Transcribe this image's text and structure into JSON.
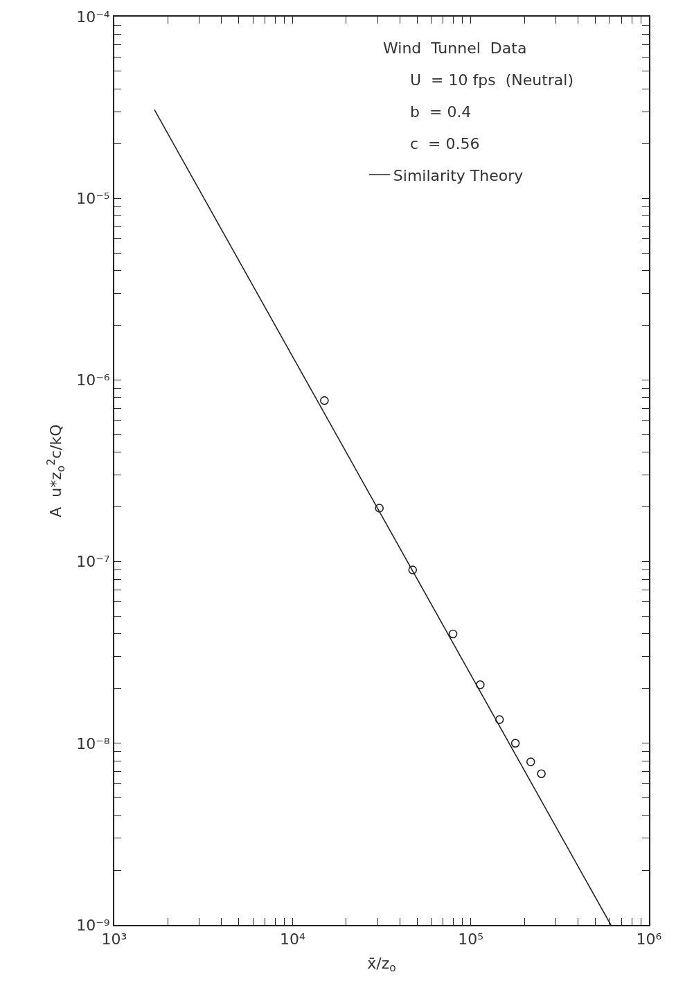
{
  "chart_data": {
    "type": "scatter",
    "xlabel": "x̄/z$_{o}$",
    "ylabel": "A  u*z$_{o}$$^{2}$c/kQ",
    "log": "xy",
    "legend": "top right",
    "annotations": [
      "Wind  Tunnel  Data",
      "U  = 10 fps  (Neutral)",
      "b  = 0.4",
      "c  = 0.56"
    ],
    "xlim": [
      1000,
      1000000
    ],
    "ylim": [
      1e-09,
      0.0001
    ],
    "xticks": [
      {
        "value": 1000,
        "label": "10³"
      },
      {
        "value": 2000,
        "label": null
      },
      {
        "value": 3000,
        "label": null
      },
      {
        "value": 4000,
        "label": null
      },
      {
        "value": 5000,
        "label": null
      },
      {
        "value": 6000,
        "label": null
      },
      {
        "value": 7000,
        "label": null
      },
      {
        "value": 8000,
        "label": null
      },
      {
        "value": 9000,
        "label": null
      },
      {
        "value": 10000,
        "label": "10⁴"
      },
      {
        "value": 20000,
        "label": null
      },
      {
        "value": 30000,
        "label": null
      },
      {
        "value": 40000,
        "label": null
      },
      {
        "value": 50000,
        "label": null
      },
      {
        "value": 60000,
        "label": null
      },
      {
        "value": 70000,
        "label": null
      },
      {
        "value": 80000,
        "label": null
      },
      {
        "value": 90000,
        "label": null
      },
      {
        "value": 100000,
        "label": "10⁵"
      },
      {
        "value": 200000,
        "label": null
      },
      {
        "value": 300000,
        "label": null
      },
      {
        "value": 400000,
        "label": null
      },
      {
        "value": 500000,
        "label": null
      },
      {
        "value": 600000,
        "label": null
      },
      {
        "value": 700000,
        "label": null
      },
      {
        "value": 800000,
        "label": null
      },
      {
        "value": 900000,
        "label": null
      },
      {
        "value": 1000000,
        "label": "10⁶"
      }
    ],
    "yticks": [
      {
        "value": 1e-09,
        "label": "10⁻⁹"
      },
      {
        "value": 2e-09,
        "label": null
      },
      {
        "value": 3e-09,
        "label": null
      },
      {
        "value": 4e-09,
        "label": null
      },
      {
        "value": 5e-09,
        "label": null
      },
      {
        "value": 6e-09,
        "label": null
      },
      {
        "value": 7e-09,
        "label": null
      },
      {
        "value": 8e-09,
        "label": null
      },
      {
        "value": 9e-09,
        "label": null
      },
      {
        "value": 1e-08,
        "label": "10⁻⁸"
      },
      {
        "value": 2e-08,
        "label": null
      },
      {
        "value": 3e-08,
        "label": null
      },
      {
        "value": 4e-08,
        "label": null
      },
      {
        "value": 5e-08,
        "label": null
      },
      {
        "value": 6e-08,
        "label": null
      },
      {
        "value": 7e-08,
        "label": null
      },
      {
        "value": 8e-08,
        "label": null
      },
      {
        "value": 9e-08,
        "label": null
      },
      {
        "value": 1e-07,
        "label": "10⁻⁷"
      },
      {
        "value": 2e-07,
        "label": null
      },
      {
        "value": 3e-07,
        "label": null
      },
      {
        "value": 4e-07,
        "label": null
      },
      {
        "value": 5e-07,
        "label": null
      },
      {
        "value": 6e-07,
        "label": null
      },
      {
        "value": 7e-07,
        "label": null
      },
      {
        "value": 8e-07,
        "label": null
      },
      {
        "value": 9e-07,
        "label": null
      },
      {
        "value": 1e-06,
        "label": "10⁻⁶"
      },
      {
        "value": 2e-06,
        "label": null
      },
      {
        "value": 3e-06,
        "label": null
      },
      {
        "value": 4e-06,
        "label": null
      },
      {
        "value": 5e-06,
        "label": null
      },
      {
        "value": 6e-06,
        "label": null
      },
      {
        "value": 7e-06,
        "label": null
      },
      {
        "value": 8e-06,
        "label": null
      },
      {
        "value": 9e-06,
        "label": null
      },
      {
        "value": 1e-05,
        "label": "10⁻⁵"
      },
      {
        "value": 2e-05,
        "label": null
      },
      {
        "value": 3e-05,
        "label": null
      },
      {
        "value": 4e-05,
        "label": null
      },
      {
        "value": 5e-05,
        "label": null
      },
      {
        "value": 6e-05,
        "label": null
      },
      {
        "value": 7e-05,
        "label": null
      },
      {
        "value": 8e-05,
        "label": null
      },
      {
        "value": 9e-05,
        "label": null
      },
      {
        "value": 0.0001,
        "label": "10⁻⁴"
      }
    ],
    "series": [
      {
        "color": "#222222",
        "marker": "circle",
        "x": [
          15100,
          30700,
          47200,
          79500,
          113000,
          145000,
          178000,
          217000,
          249000
        ],
        "values": [
          7.7e-07,
          1.97e-07,
          9e-08,
          4e-08,
          2.1e-08,
          1.35e-08,
          1e-08,
          7.9e-09,
          6.8e-09
        ]
      },
      {
        "type": "line",
        "name": "Similarity Theory",
        "color": "#222222",
        "line_style": "solid",
        "x": [
          1680,
          611000
        ],
        "values": [
          3.07e-05,
          1e-09
        ]
      }
    ]
  }
}
